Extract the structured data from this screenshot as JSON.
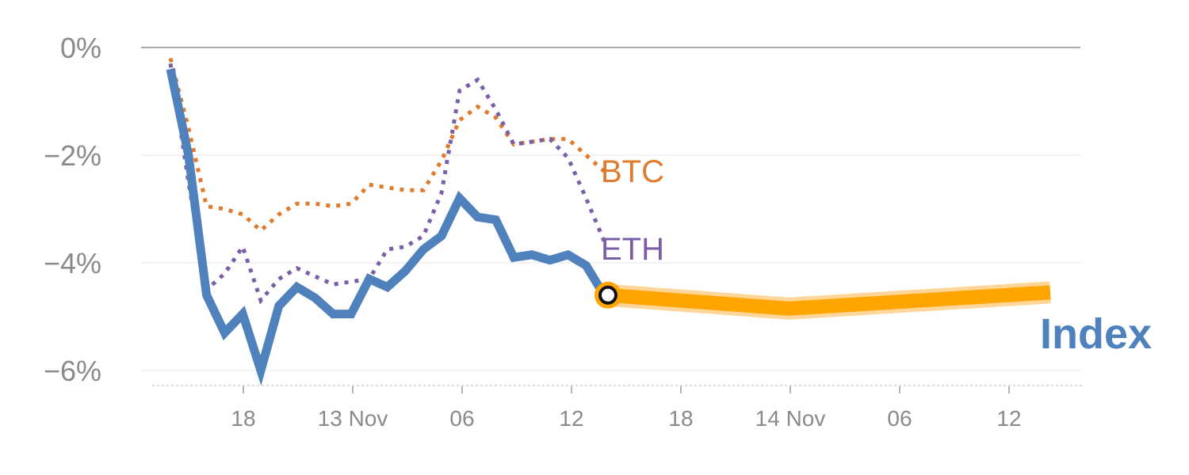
{
  "chart_data": {
    "type": "line",
    "title": "",
    "xlabel": "",
    "ylabel": "",
    "ylim": [
      -6.2,
      0.1
    ],
    "y_ticks": [
      0,
      -2,
      -4,
      -6
    ],
    "y_tick_labels": [
      "0%",
      "−2%",
      "−4%",
      "−6%"
    ],
    "x_tick_labels": [
      "18",
      "13 Nov",
      "06",
      "12",
      "18",
      "14 Nov",
      "06",
      "12"
    ],
    "grid": true,
    "legend_placement": "inline-end-labels",
    "series": [
      {
        "name": "Index",
        "color": "#4f81bd",
        "style": "solid",
        "values": [
          -0.4,
          -2.0,
          -4.6,
          -5.3,
          -4.95,
          -6.0,
          -4.8,
          -4.45,
          -4.65,
          -4.95,
          -4.95,
          -4.3,
          -4.45,
          -4.15,
          -3.75,
          -3.5,
          -2.8,
          -3.15,
          -3.2,
          -3.9,
          -3.85,
          -3.95,
          -3.85,
          -4.05,
          -4.6
        ]
      },
      {
        "name": "BTC",
        "color": "#e07b2d",
        "style": "dotted",
        "values": [
          -0.2,
          -1.5,
          -2.95,
          -3.0,
          -3.1,
          -3.4,
          -3.1,
          -2.9,
          -2.9,
          -2.95,
          -2.9,
          -2.55,
          -2.6,
          -2.65,
          -2.65,
          -2.1,
          -1.35,
          -1.1,
          -1.3,
          -1.8,
          -1.75,
          -1.7,
          -1.7,
          -2.0,
          -2.3
        ]
      },
      {
        "name": "ETH",
        "color": "#7a5ea8",
        "style": "dotted",
        "values": [
          -0.3,
          -2.5,
          -4.5,
          -4.2,
          -3.7,
          -4.7,
          -4.3,
          -4.1,
          -4.25,
          -4.4,
          -4.35,
          -4.3,
          -3.75,
          -3.7,
          -3.5,
          -2.7,
          -0.8,
          -0.6,
          -1.15,
          -1.8,
          -1.75,
          -1.7,
          -2.05,
          -2.8,
          -3.6
        ]
      }
    ],
    "forecast": {
      "color": "#ffa500",
      "values": [
        -4.6,
        -4.85,
        -4.55
      ]
    },
    "end_labels": {
      "btc": "BTC",
      "eth": "ETH",
      "index": "Index"
    }
  }
}
